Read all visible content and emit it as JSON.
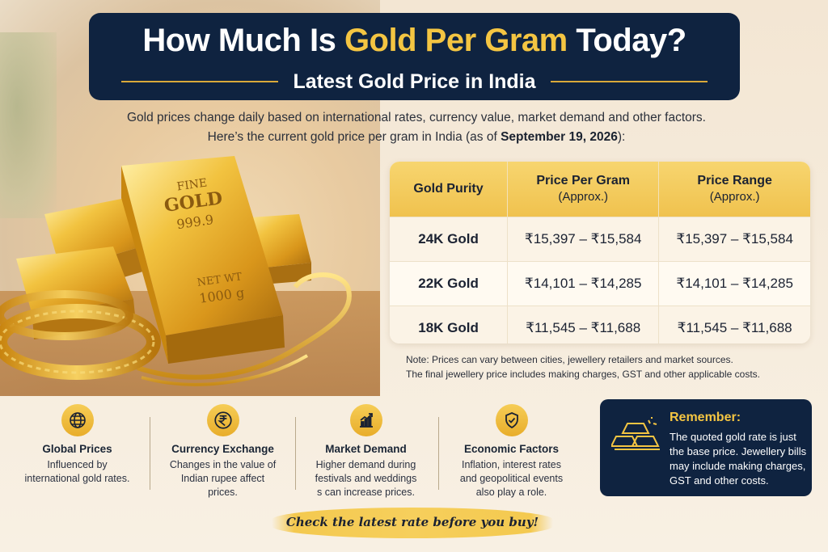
{
  "header": {
    "title_pre": "How Much Is ",
    "title_gold": "Gold Per Gram",
    "title_post": " Today?",
    "subtitle": "Latest Gold Price in India"
  },
  "intro": {
    "line1": "Gold prices change daily based on international rates, currency value, market demand and other factors.",
    "line2_pre": "Here’s the current gold price per gram in India (as of ",
    "line2_date": "September 19, 2026",
    "line2_post": "):"
  },
  "illustration": {
    "bar_line1": "FINE",
    "bar_line2": "GOLD",
    "bar_line3": "999.9",
    "bar_line4": "NET WT",
    "bar_line5": "1000 g"
  },
  "price_table": {
    "headers": {
      "purity": "Gold Purity",
      "price_main": "Price Per Gram",
      "price_sub": "(Approx.)",
      "range_main": "Price Range",
      "range_sub": "(Approx.)"
    },
    "rows": [
      {
        "purity": "24K Gold",
        "price": "₹15,397 – ₹15,584",
        "range": "₹15,397 – ₹15,584"
      },
      {
        "purity": "22K Gold",
        "price": "₹14,101 – ₹14,285",
        "range": "₹14,101 – ₹14,285"
      },
      {
        "purity": "18K Gold",
        "price": "₹11,545 – ₹11,688",
        "range": "₹11,545 – ₹11,688"
      }
    ]
  },
  "note": {
    "line1": "Note: Prices can vary between cities, jewellery retailers and market sources.",
    "line2": "The final jewellery price includes making charges, GST and other applicable costs."
  },
  "factors": [
    {
      "icon": "globe-icon",
      "title": "Global Prices",
      "desc": "Influenced by international gold rates."
    },
    {
      "icon": "rupee-icon",
      "title": "Currency Exchange",
      "desc": "Changes in the value of Indian rupee affect prices."
    },
    {
      "icon": "chart-up-icon",
      "title": "Market Demand",
      "desc": "Higher demand during festivals and weddings s can increase prices."
    },
    {
      "icon": "shield-check-icon",
      "title": "Economic Factors",
      "desc": "Inflation, interest rates and geopolitical events also play a role."
    }
  ],
  "remember": {
    "title": "Remember:",
    "text": "The quoted gold rate is just the base price. Jewellery bills may include making charges, GST and other costs."
  },
  "cta": {
    "text": "Check the latest rate before you buy!"
  },
  "colors": {
    "navy": "#0f2340",
    "gold": "#f4c542",
    "cream": "#f6ecdd"
  }
}
